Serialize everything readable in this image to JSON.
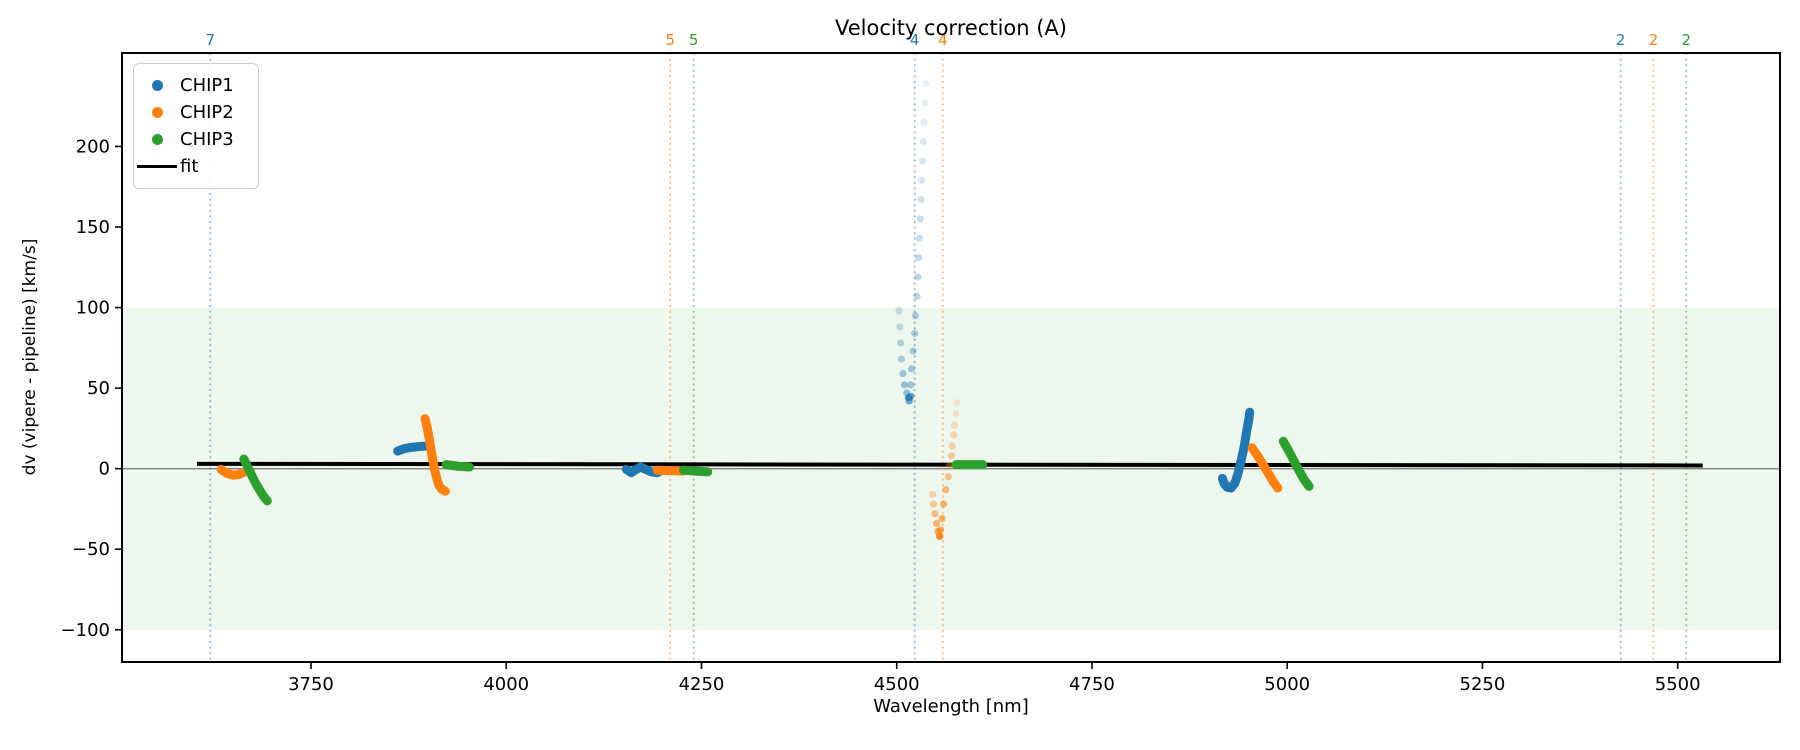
{
  "title": "Velocity correction (A)",
  "legend": {
    "position": "upper left",
    "items": [
      {
        "label": "CHIP1",
        "marker": "dot",
        "color": "#1f77b4"
      },
      {
        "label": "CHIP2",
        "marker": "dot",
        "color": "#ff7f0e"
      },
      {
        "label": "CHIP3",
        "marker": "dot",
        "color": "#2ca02c"
      },
      {
        "label": "fit",
        "marker": "line",
        "color": "#000000"
      }
    ]
  },
  "axes": {
    "x": {
      "label": "Wavelength [nm]",
      "ticks": [
        3750,
        4000,
        4250,
        4500,
        4750,
        5000,
        5250,
        5500
      ]
    },
    "y": {
      "label": "dv (vipere - pipeline) [km/s]",
      "ticks": [
        -100,
        -50,
        0,
        50,
        100,
        150,
        200
      ]
    }
  },
  "chart_data": {
    "type": "scatter",
    "title": "Velocity correction (A)",
    "xlabel": "Wavelength [nm]",
    "ylabel": "dv (vipere - pipeline) [km/s]",
    "xlim": [
      3508,
      5631
    ],
    "ylim": [
      -120,
      258
    ],
    "grid": false,
    "shaded_band": {
      "ymin": -100,
      "ymax": 100,
      "color": "#2ca02c",
      "alpha": 0.085
    },
    "zero_line": {
      "y": 0,
      "color": "#808080"
    },
    "fit_line": {
      "label": "fit",
      "color": "#000000",
      "points": [
        [
          3604,
          3
        ],
        [
          5532,
          2
        ]
      ]
    },
    "vertical_lines": [
      {
        "wavelength": 3621,
        "label": "7",
        "color": "#1f77b4"
      },
      {
        "wavelength": 4210,
        "label": "5",
        "color": "#ff7f0e"
      },
      {
        "wavelength": 4240,
        "label": "5",
        "color": "#2ca02c"
      },
      {
        "wavelength": 4523,
        "label": "4",
        "color": "#1f77b4"
      },
      {
        "wavelength": 4559,
        "label": "4",
        "color": "#ff7f0e"
      },
      {
        "wavelength": 5427,
        "label": "2",
        "color": "#1f77b4"
      },
      {
        "wavelength": 5469,
        "label": "2",
        "color": "#ff7f0e"
      },
      {
        "wavelength": 5511,
        "label": "2",
        "color": "#2ca02c"
      }
    ],
    "series": [
      {
        "name": "CHIP1",
        "color": "#1f77b4",
        "streaks": [
          {
            "points": [
              [
                3861,
                11
              ],
              [
                3870,
                12.5
              ],
              [
                3880,
                13.3
              ],
              [
                3890,
                13.8
              ],
              [
                3897,
                14
              ]
            ]
          },
          {
            "points": [
              [
                4154,
                -0.5
              ],
              [
                4160,
                -2.5
              ],
              [
                4166,
                -0.5
              ],
              [
                4172,
                1
              ],
              [
                4179,
                -0.5
              ],
              [
                4186,
                -2
              ],
              [
                4193,
                -2.5
              ],
              [
                4197,
                -1.5
              ]
            ]
          },
          {
            "points": [
              [
                4917,
                -6
              ],
              [
                4919,
                -9
              ],
              [
                4923,
                -11.5
              ],
              [
                4928,
                -12
              ],
              [
                4933,
                -9
              ],
              [
                4937,
                -3
              ],
              [
                4941,
                5
              ],
              [
                4945,
                14
              ],
              [
                4948,
                23
              ],
              [
                4951,
                31
              ],
              [
                4952,
                35
              ]
            ]
          }
        ],
        "trails": [
          {
            "alpha": [
              0.1,
              0.42
            ],
            "points": [
              [
                4537,
                239
              ],
              [
                4536,
                227
              ],
              [
                4535,
                215
              ],
              [
                4534,
                203
              ],
              [
                4533,
                191
              ],
              [
                4532,
                179
              ],
              [
                4531,
                167
              ],
              [
                4530,
                155
              ],
              [
                4529,
                143
              ],
              [
                4528,
                131
              ],
              [
                4527,
                119
              ],
              [
                4526,
                107
              ],
              [
                4524,
                95
              ],
              [
                4523,
                84
              ],
              [
                4521,
                73
              ],
              [
                4519,
                62
              ],
              [
                4518,
                52
              ],
              [
                4517,
                44
              ]
            ]
          },
          {
            "alpha": [
              0.22,
              0.5
            ],
            "points": [
              [
                4503,
                98
              ],
              [
                4504,
                88
              ],
              [
                4505,
                78
              ],
              [
                4506,
                68
              ],
              [
                4508,
                59
              ],
              [
                4510,
                52
              ],
              [
                4513,
                47
              ],
              [
                4515,
                44
              ]
            ]
          },
          {
            "alpha": [
              0.6,
              0.6
            ],
            "points": [
              [
                4515,
                44
              ],
              [
                4516,
                42
              ],
              [
                4518,
                45
              ]
            ]
          }
        ]
      },
      {
        "name": "CHIP2",
        "color": "#ff7f0e",
        "streaks": [
          {
            "points": [
              [
                3635,
                -0.5
              ],
              [
                3642,
                -2.8
              ],
              [
                3650,
                -4
              ],
              [
                3658,
                -3.6
              ],
              [
                3666,
                -1.8
              ]
            ]
          },
          {
            "points": [
              [
                3896,
                31
              ],
              [
                3899,
                25
              ],
              [
                3902,
                17
              ],
              [
                3905,
                8
              ],
              [
                3908,
                0
              ],
              [
                3911,
                -6
              ],
              [
                3914,
                -10.5
              ],
              [
                3918,
                -13
              ],
              [
                3922,
                -14
              ]
            ]
          },
          {
            "points": [
              [
                4193,
                -1
              ],
              [
                4210,
                -1.2
              ],
              [
                4226,
                -1.5
              ]
            ]
          },
          {
            "points": [
              [
                4955,
                13
              ],
              [
                4962,
                8
              ],
              [
                4969,
                2.5
              ],
              [
                4976,
                -3
              ],
              [
                4982,
                -8
              ],
              [
                4988,
                -12
              ]
            ]
          }
        ],
        "trails": [
          {
            "alpha": [
              0.14,
              0.72
            ],
            "points": [
              [
                4577,
                41
              ],
              [
                4576,
                34
              ],
              [
                4574,
                27
              ],
              [
                4573,
                21
              ],
              [
                4571,
                14
              ],
              [
                4570,
                8
              ],
              [
                4568,
                2
              ],
              [
                4566,
                -5
              ],
              [
                4563,
                -13
              ],
              [
                4560,
                -22
              ],
              [
                4558,
                -31
              ],
              [
                4556,
                -38
              ],
              [
                4555,
                -42
              ]
            ]
          },
          {
            "alpha": [
              0.3,
              0.75
            ],
            "points": [
              [
                4546,
                -16
              ],
              [
                4547,
                -22
              ],
              [
                4549,
                -28
              ],
              [
                4551,
                -34
              ],
              [
                4553,
                -39
              ],
              [
                4555,
                -42
              ]
            ]
          }
        ]
      },
      {
        "name": "CHIP3",
        "color": "#2ca02c",
        "streaks": [
          {
            "points": [
              [
                3664,
                6
              ],
              [
                3669,
                1
              ],
              [
                3674,
                -4
              ],
              [
                3679,
                -9
              ],
              [
                3684,
                -13
              ],
              [
                3689,
                -17
              ],
              [
                3694,
                -20
              ]
            ]
          },
          {
            "points": [
              [
                3923,
                2.5
              ],
              [
                3938,
                1.5
              ],
              [
                3953,
                1
              ]
            ]
          },
          {
            "points": [
              [
                4227,
                -1
              ],
              [
                4243,
                -1.5
              ],
              [
                4258,
                -2
              ]
            ]
          },
          {
            "points": [
              [
                4576,
                2.5
              ],
              [
                4593,
                2.5
              ],
              [
                4610,
                2.5
              ]
            ]
          },
          {
            "points": [
              [
                4995,
                17
              ],
              [
                5002,
                11
              ],
              [
                5009,
                4.5
              ],
              [
                5016,
                -2
              ],
              [
                5022,
                -7
              ],
              [
                5028,
                -11
              ]
            ]
          }
        ],
        "trails": []
      }
    ]
  }
}
